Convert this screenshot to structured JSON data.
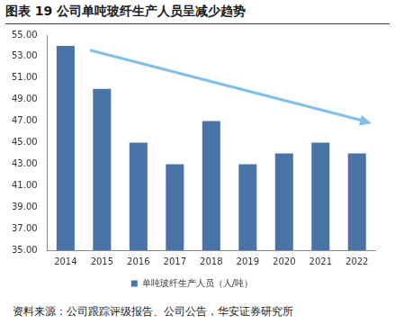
{
  "chart_data": {
    "type": "bar",
    "title": "图表 19 公司单吨玻纤生产人员呈减少趋势",
    "categories": [
      "2014",
      "2015",
      "2016",
      "2017",
      "2018",
      "2019",
      "2020",
      "2021",
      "2022"
    ],
    "series": [
      {
        "name": "单吨玻纤生产人员（人/吨）",
        "color": "#4a73a8",
        "values": [
          54,
          50,
          45,
          43,
          47,
          43,
          44,
          45,
          44
        ]
      }
    ],
    "ylim": [
      35,
      55
    ],
    "yticks": [
      {
        "value": 35,
        "label": "35.00"
      },
      {
        "value": 37,
        "label": "37.00"
      },
      {
        "value": 39,
        "label": "39.00"
      },
      {
        "value": 41,
        "label": "41.00"
      },
      {
        "value": 43,
        "label": "43.00"
      },
      {
        "value": 45,
        "label": "45.00"
      },
      {
        "value": 47,
        "label": "47.00"
      },
      {
        "value": 49,
        "label": "49.00"
      },
      {
        "value": 51,
        "label": "51.00"
      },
      {
        "value": 53,
        "label": "53.00"
      },
      {
        "value": 55,
        "label": "55.00"
      }
    ],
    "grid": false,
    "legend": "bottom",
    "annotations": [
      "资料来源：公司跟踪评级报告、公司公告，华安证券研究所"
    ]
  }
}
